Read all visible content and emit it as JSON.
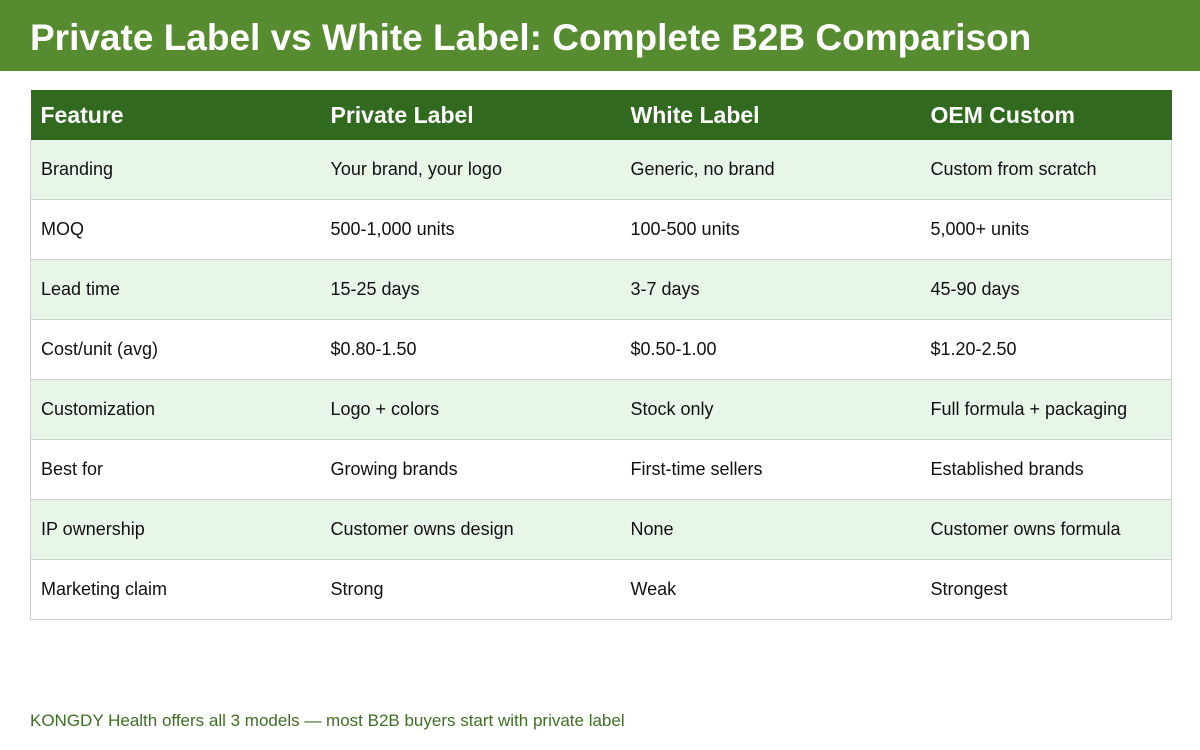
{
  "title": "Private Label vs White Label: Complete B2B Comparison",
  "colors": {
    "header_bg": "#568b2f",
    "table_header_bg": "#31691e",
    "row_alt_bg": "#e8f5e9",
    "footer_text": "#3e6f24"
  },
  "table": {
    "headers": [
      "Feature",
      "Private Label",
      "White Label",
      "OEM Custom"
    ],
    "rows": [
      [
        "Branding",
        "Your brand, your logo",
        "Generic, no brand",
        "Custom from scratch"
      ],
      [
        "MOQ",
        "500-1,000 units",
        "100-500 units",
        "5,000+ units"
      ],
      [
        "Lead time",
        "15-25 days",
        "3-7 days",
        "45-90 days"
      ],
      [
        "Cost/unit (avg)",
        "$0.80-1.50",
        "$0.50-1.00",
        "$1.20-2.50"
      ],
      [
        "Customization",
        "Logo + colors",
        "Stock only",
        "Full formula + packaging"
      ],
      [
        "Best for",
        "Growing brands",
        "First-time sellers",
        "Established brands"
      ],
      [
        "IP ownership",
        "Customer owns design",
        "None",
        "Customer owns formula"
      ],
      [
        "Marketing claim",
        "Strong",
        "Weak",
        "Strongest"
      ]
    ]
  },
  "footer": "KONGDY Health offers all 3 models — most B2B buyers start with private label"
}
